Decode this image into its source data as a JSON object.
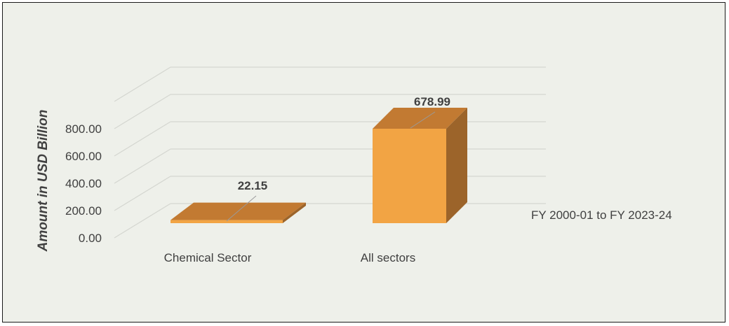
{
  "chart_data": {
    "type": "bar",
    "categories": [
      "Chemical Sector",
      "All sectors"
    ],
    "series": [
      {
        "name": "FY 2000-01 to FY 2023-24",
        "values": [
          22.15,
          678.99
        ]
      }
    ],
    "data_labels": [
      "22.15",
      "678.99"
    ],
    "ylabel": "Amount in USD Billion",
    "yticks": [
      "0.00",
      "200.00",
      "400.00",
      "600.00",
      "800.00"
    ],
    "ylim": [
      0,
      800
    ],
    "legend": "right",
    "grid": true,
    "colors": {
      "front": "#f2a444",
      "top": "#c27a32",
      "side": "#9c642a",
      "grid": "#d4d6d0",
      "text": "#404040"
    }
  }
}
